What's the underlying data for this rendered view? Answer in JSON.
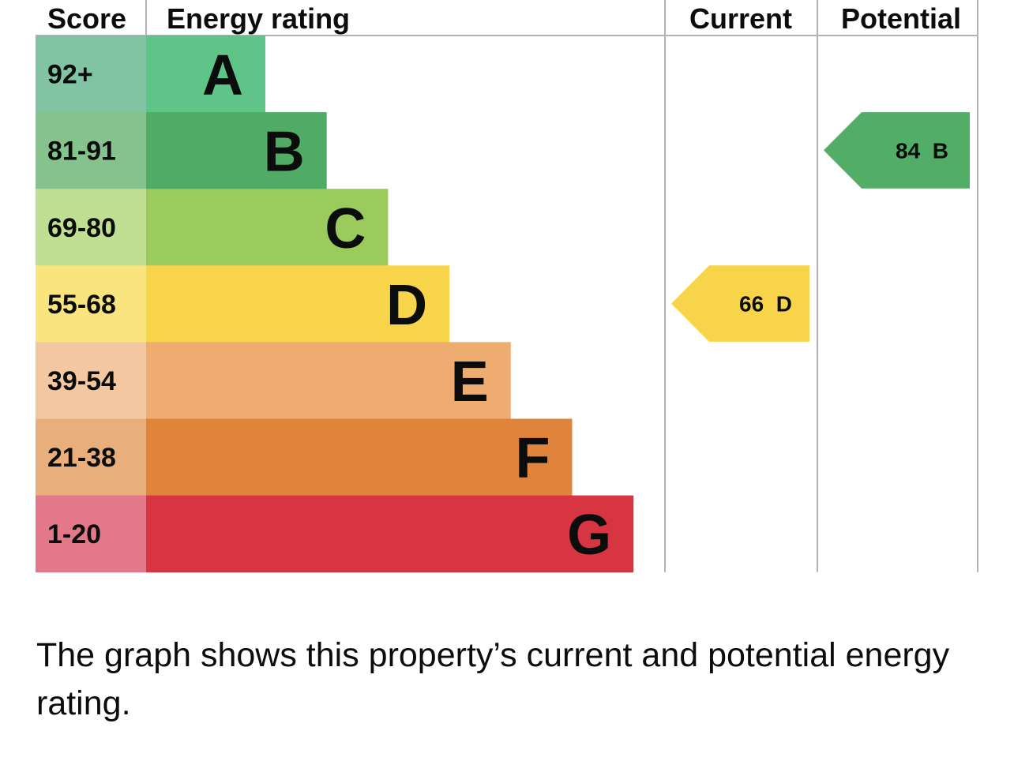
{
  "chart_data": {
    "type": "table",
    "headers": {
      "score": "Score",
      "energy_rating": "Energy rating",
      "current": "Current",
      "potential": "Potential"
    },
    "bands": [
      {
        "letter": "A",
        "score_range": "92+",
        "color": "#5ec487",
        "score_color": "#80c4a4"
      },
      {
        "letter": "B",
        "score_range": "81-91",
        "color": "#4fab65",
        "score_color": "#85c28e"
      },
      {
        "letter": "C",
        "score_range": "69-80",
        "color": "#9acb5c",
        "score_color": "#c0df93"
      },
      {
        "letter": "D",
        "score_range": "55-68",
        "color": "#f7d44a",
        "score_color": "#fae47d"
      },
      {
        "letter": "E",
        "score_range": "39-54",
        "color": "#eeac71",
        "score_color": "#f3c7a0"
      },
      {
        "letter": "F",
        "score_range": "21-38",
        "color": "#e0843b",
        "score_color": "#e8ae7c"
      },
      {
        "letter": "G",
        "score_range": "1-20",
        "color": "#d63541",
        "score_color": "#e3788a"
      }
    ],
    "current": {
      "score": 66,
      "band": "D",
      "color": "#f7d44a"
    },
    "potential": {
      "score": 84,
      "band": "B",
      "color": "#52ae67"
    }
  },
  "caption": "The graph shows this property’s current and potential energy rating."
}
